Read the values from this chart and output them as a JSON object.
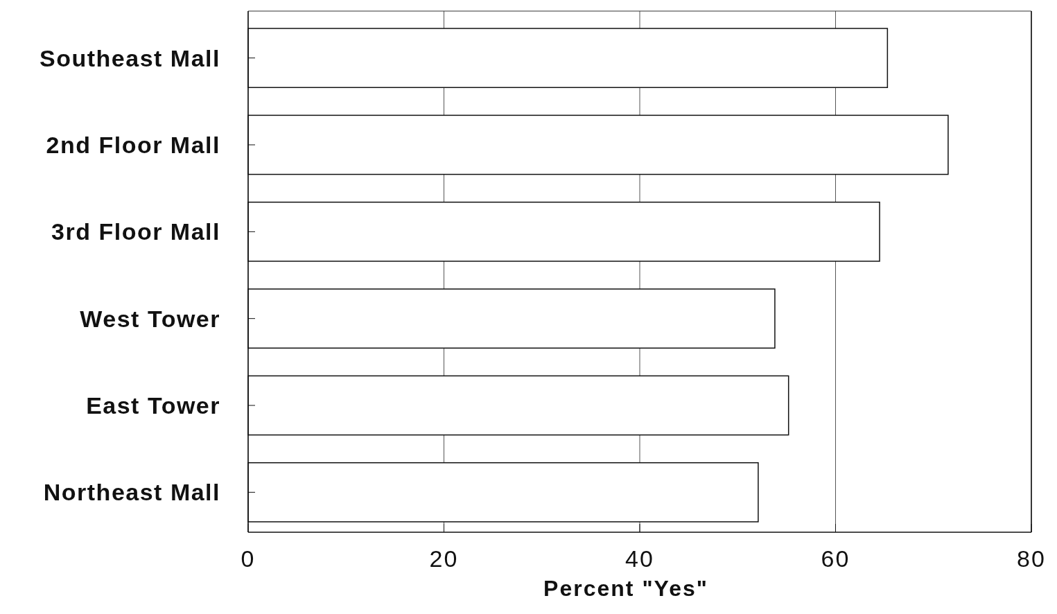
{
  "chart_data": {
    "type": "bar",
    "orientation": "horizontal",
    "xlabel": "Percent \"Yes\"",
    "categories": [
      "Southeast Mall",
      "2nd Floor Mall",
      "3rd Floor Mall",
      "West Tower",
      "East Tower",
      "Northeast Mall"
    ],
    "values": [
      65.3,
      71.5,
      64.5,
      53.8,
      55.2,
      52.1
    ],
    "color": "#ffffff",
    "xlim": [
      0,
      80
    ],
    "xticks": [
      0,
      20,
      40,
      60,
      80
    ],
    "grid": "x"
  }
}
